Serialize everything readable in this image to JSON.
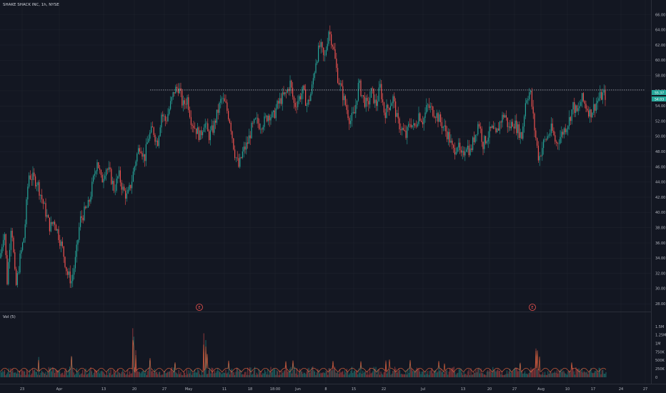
{
  "header": {
    "title": "SHAKE SHACK INC, 1h, NYSE"
  },
  "volume_panel": {
    "label": "Vol (5)"
  },
  "colors": {
    "up": "#26a69a",
    "down": "#ef5350",
    "background": "#131722",
    "grid": "#1e222d",
    "text": "#b2b5be",
    "reference_line": "#d1d4dc"
  },
  "price_labels": {
    "last": "55.37",
    "previous": "54.03"
  },
  "chart_data": [
    {
      "type": "candlestick",
      "title": "SHAKE SHACK INC, 1h, NYSE",
      "x_ticks": [
        "23",
        "Apr",
        "13",
        "20",
        "27",
        "May",
        "11",
        "18",
        "18:00",
        "Jun",
        "8",
        "15",
        "22",
        "Jul",
        "13",
        "20",
        "27",
        "Aug",
        "10",
        "17",
        "24",
        "27"
      ],
      "y_ticks": [
        "66.00",
        "64.00",
        "62.00",
        "60.00",
        "58.00",
        "56.00",
        "54.00",
        "52.00",
        "50.00",
        "48.00",
        "46.00",
        "44.00",
        "42.00",
        "40.00",
        "38.00",
        "36.00",
        "34.00",
        "32.00",
        "30.00",
        "28.00"
      ],
      "ylim": [
        27.5,
        67
      ],
      "reference_level": 56.1,
      "last_price": 55.37,
      "prev_close": 54.03,
      "events": [
        "E",
        "E"
      ],
      "price_path": [
        [
          0,
          34
        ],
        [
          6,
          38
        ],
        [
          10,
          31
        ],
        [
          16,
          39
        ],
        [
          22,
          30
        ],
        [
          28,
          34
        ],
        [
          34,
          37
        ],
        [
          40,
          45
        ],
        [
          46,
          44.5
        ],
        [
          52,
          44
        ],
        [
          58,
          42
        ],
        [
          64,
          40
        ],
        [
          70,
          38
        ],
        [
          76,
          39
        ],
        [
          82,
          37
        ],
        [
          88,
          35
        ],
        [
          94,
          32
        ],
        [
          100,
          31
        ],
        [
          106,
          34
        ],
        [
          112,
          39
        ],
        [
          118,
          40
        ],
        [
          124,
          41
        ],
        [
          130,
          44
        ],
        [
          136,
          47
        ],
        [
          142,
          44
        ],
        [
          148,
          46
        ],
        [
          154,
          45
        ],
        [
          160,
          43
        ],
        [
          166,
          45
        ],
        [
          172,
          43
        ],
        [
          178,
          42
        ],
        [
          184,
          44
        ],
        [
          190,
          47
        ],
        [
          196,
          49
        ],
        [
          202,
          47
        ],
        [
          208,
          50
        ],
        [
          214,
          51
        ],
        [
          220,
          49
        ],
        [
          226,
          53
        ],
        [
          232,
          52
        ],
        [
          238,
          54
        ],
        [
          244,
          56
        ],
        [
          250,
          56.5
        ],
        [
          256,
          54
        ],
        [
          262,
          55
        ],
        [
          268,
          52
        ],
        [
          274,
          51
        ],
        [
          280,
          50
        ],
        [
          286,
          52
        ],
        [
          292,
          50
        ],
        [
          298,
          51
        ],
        [
          304,
          53
        ],
        [
          310,
          55
        ],
        [
          316,
          54
        ],
        [
          322,
          52
        ],
        [
          328,
          48
        ],
        [
          334,
          46
        ],
        [
          340,
          48
        ],
        [
          346,
          49
        ],
        [
          352,
          51
        ],
        [
          358,
          52
        ],
        [
          364,
          51.5
        ],
        [
          370,
          52
        ],
        [
          376,
          53
        ],
        [
          382,
          52.5
        ],
        [
          388,
          54
        ],
        [
          394,
          55
        ],
        [
          400,
          55.5
        ],
        [
          406,
          57
        ],
        [
          412,
          54
        ],
        [
          418,
          55
        ],
        [
          424,
          56
        ],
        [
          430,
          54
        ],
        [
          436,
          56
        ],
        [
          442,
          60
        ],
        [
          448,
          62
        ],
        [
          454,
          60
        ],
        [
          460,
          64
        ],
        [
          466,
          62
        ],
        [
          472,
          58
        ],
        [
          478,
          56
        ],
        [
          484,
          54
        ],
        [
          490,
          52
        ],
        [
          496,
          53
        ],
        [
          502,
          57
        ],
        [
          508,
          55
        ],
        [
          514,
          54
        ],
        [
          520,
          56
        ],
        [
          526,
          54
        ],
        [
          532,
          56.5
        ],
        [
          538,
          53
        ],
        [
          544,
          54
        ],
        [
          550,
          55
        ],
        [
          556,
          52
        ],
        [
          562,
          51
        ],
        [
          568,
          50
        ],
        [
          574,
          52
        ],
        [
          580,
          51
        ],
        [
          586,
          53
        ],
        [
          592,
          52
        ],
        [
          598,
          54
        ],
        [
          604,
          53.5
        ],
        [
          610,
          53
        ],
        [
          616,
          52
        ],
        [
          622,
          51
        ],
        [
          628,
          50
        ],
        [
          634,
          48
        ],
        [
          640,
          49
        ],
        [
          646,
          47
        ],
        [
          652,
          49
        ],
        [
          658,
          48
        ],
        [
          664,
          50
        ],
        [
          670,
          52
        ],
        [
          676,
          49
        ],
        [
          682,
          50
        ],
        [
          688,
          51
        ],
        [
          694,
          50
        ],
        [
          700,
          52
        ],
        [
          706,
          53
        ],
        [
          712,
          51
        ],
        [
          718,
          52
        ],
        [
          724,
          51
        ],
        [
          730,
          50
        ],
        [
          736,
          55
        ],
        [
          742,
          56
        ],
        [
          748,
          51
        ],
        [
          754,
          47
        ],
        [
          760,
          49
        ],
        [
          766,
          50
        ],
        [
          772,
          51
        ],
        [
          778,
          49
        ],
        [
          784,
          50
        ],
        [
          790,
          51
        ],
        [
          796,
          52
        ],
        [
          802,
          54
        ],
        [
          808,
          53
        ],
        [
          814,
          55
        ],
        [
          820,
          54
        ],
        [
          826,
          53
        ],
        [
          832,
          54
        ],
        [
          838,
          55
        ],
        [
          844,
          55.5
        ],
        [
          848,
          55.37
        ]
      ]
    },
    {
      "type": "bar",
      "title": "Vol (5)",
      "y_ticks": [
        "1.5M",
        "1.25M",
        "1M",
        "750K",
        "500K",
        "250K",
        "0"
      ],
      "ylim": [
        0,
        1560000
      ],
      "spikes": [
        [
          186,
          1450000
        ],
        [
          187,
          1200000
        ],
        [
          190,
          800000
        ],
        [
          285,
          1300000
        ],
        [
          288,
          1100000
        ],
        [
          290,
          700000
        ],
        [
          750,
          850000
        ],
        [
          752,
          900000
        ],
        [
          755,
          700000
        ],
        [
          100,
          600000
        ],
        [
          54,
          600000
        ],
        [
          210,
          500000
        ],
        [
          245,
          400000
        ],
        [
          320,
          400000
        ],
        [
          400,
          350000
        ],
        [
          410,
          400000
        ],
        [
          466,
          350000
        ],
        [
          505,
          350000
        ],
        [
          540,
          500000
        ],
        [
          545,
          450000
        ],
        [
          574,
          400000
        ],
        [
          614,
          350000
        ],
        [
          622,
          400000
        ],
        [
          728,
          400000
        ],
        [
          800,
          350000
        ]
      ]
    }
  ]
}
